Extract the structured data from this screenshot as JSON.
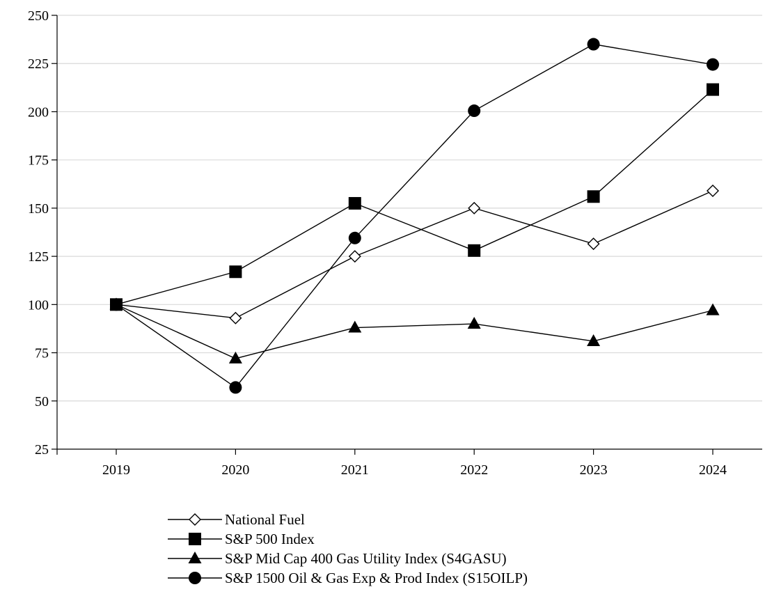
{
  "chart_data": {
    "type": "line",
    "x": [
      "2019",
      "2020",
      "2021",
      "2022",
      "2023",
      "2024"
    ],
    "ylim": [
      25,
      250
    ],
    "yticks": [
      25,
      50,
      75,
      100,
      125,
      150,
      175,
      200,
      225,
      250
    ],
    "grid": "horizontal",
    "legend_position": "bottom",
    "series": [
      {
        "name": "National Fuel",
        "marker": "diamond-open",
        "values": [
          100,
          93,
          125,
          150,
          131.5,
          159
        ]
      },
      {
        "name": "S&P 500 Index",
        "marker": "square",
        "values": [
          100,
          117,
          152.5,
          128,
          156,
          211.5
        ]
      },
      {
        "name": "S&P Mid Cap 400 Gas Utility Index (S4GASU)",
        "marker": "triangle",
        "values": [
          100,
          72,
          88,
          90,
          81,
          97
        ]
      },
      {
        "name": "S&P 1500 Oil & Gas Exp & Prod Index (S15OILP)",
        "marker": "circle",
        "values": [
          100,
          57,
          134.5,
          200.5,
          235,
          224.5
        ]
      }
    ]
  }
}
